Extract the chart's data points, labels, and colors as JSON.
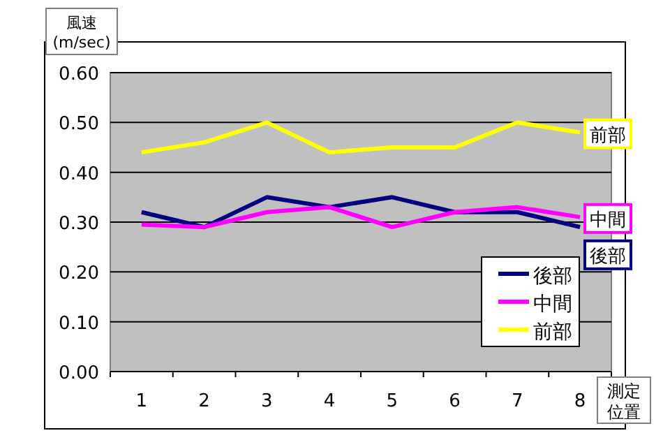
{
  "chart_data": {
    "type": "line",
    "xlabel": "測定位置",
    "ylabel": "風速\n(m/sec)",
    "categories": [
      "1",
      "2",
      "3",
      "4",
      "5",
      "6",
      "7",
      "8"
    ],
    "series": [
      {
        "name": "後部",
        "color": "#000080",
        "values": [
          0.32,
          0.29,
          0.35,
          0.33,
          0.35,
          0.32,
          0.32,
          0.29
        ]
      },
      {
        "name": "中間",
        "color": "#ff00ff",
        "values": [
          0.295,
          0.29,
          0.32,
          0.33,
          0.29,
          0.32,
          0.33,
          0.31
        ]
      },
      {
        "name": "前部",
        "color": "#ffff00",
        "values": [
          0.44,
          0.46,
          0.5,
          0.44,
          0.45,
          0.45,
          0.5,
          0.48
        ]
      }
    ],
    "ylim": [
      0,
      0.6
    ],
    "yticks": [
      {
        "value": 0,
        "label": "0.00"
      },
      {
        "value": 0.1,
        "label": "0.10"
      },
      {
        "value": 0.2,
        "label": "0.20"
      },
      {
        "value": 0.3,
        "label": "0.30"
      },
      {
        "value": 0.4,
        "label": "0.40"
      },
      {
        "value": 0.5,
        "label": "0.50"
      },
      {
        "value": 0.6,
        "label": "0.60"
      }
    ],
    "grid": "y",
    "legend": "bottom right",
    "marker": "none",
    "line_style": "solid"
  }
}
